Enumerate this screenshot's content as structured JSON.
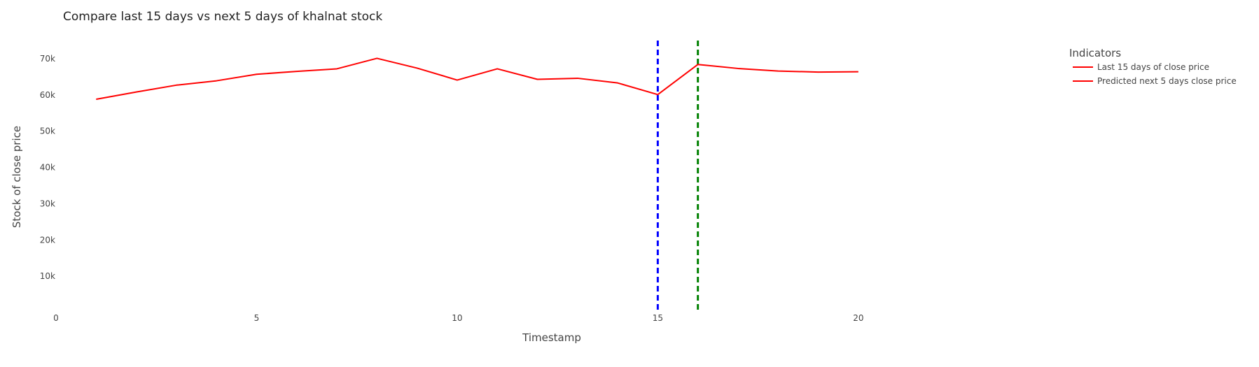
{
  "chart_data": {
    "type": "line",
    "title": "Compare last 15 days vs next 5 days of khalnat stock",
    "xlabel": "Timestamp",
    "ylabel": "Stock of close price",
    "xlim": [
      0,
      24
    ],
    "ylim": [
      0,
      75000
    ],
    "x_ticks": [
      {
        "value": 0,
        "label": "0"
      },
      {
        "value": 5,
        "label": "5"
      },
      {
        "value": 10,
        "label": "10"
      },
      {
        "value": 15,
        "label": "15"
      },
      {
        "value": 20,
        "label": "20"
      }
    ],
    "y_ticks": [
      {
        "value": 10000,
        "label": "10k"
      },
      {
        "value": 20000,
        "label": "20k"
      },
      {
        "value": 30000,
        "label": "30k"
      },
      {
        "value": 40000,
        "label": "40k"
      },
      {
        "value": 50000,
        "label": "50k"
      },
      {
        "value": 60000,
        "label": "60k"
      },
      {
        "value": 70000,
        "label": "70k"
      }
    ],
    "grid": false,
    "legend": {
      "title": "Indicators",
      "placement": "top-right"
    },
    "series": [
      {
        "name": "Last 15 days of close price",
        "color": "#ff0000",
        "x": [
          1,
          2,
          3,
          4,
          5,
          6,
          7,
          8,
          9,
          10,
          11,
          12,
          13,
          14,
          15
        ],
        "y": [
          58800,
          60800,
          62700,
          63900,
          65700,
          66500,
          67200,
          70100,
          67400,
          64100,
          67200,
          64300,
          64600,
          63300,
          60100
        ]
      },
      {
        "name": "Predicted next 5 days close price",
        "color": "#ff0000",
        "x": [
          15,
          16,
          17,
          18,
          19,
          20
        ],
        "y": [
          60100,
          68400,
          67300,
          66600,
          66300,
          66400
        ]
      }
    ],
    "vertical_lines": [
      {
        "x": 15,
        "color": "#0000ff",
        "style": "dashed"
      },
      {
        "x": 16,
        "color": "#008000",
        "style": "dashed"
      }
    ]
  }
}
